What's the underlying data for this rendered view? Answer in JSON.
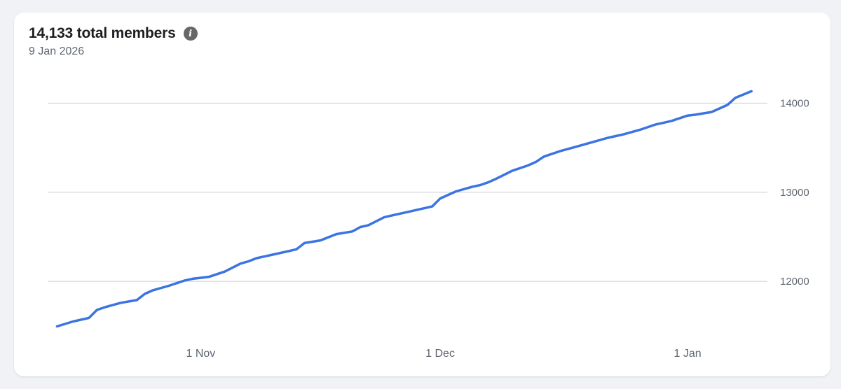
{
  "header": {
    "title": "14,133 total members",
    "subtitle": "9 Jan 2026",
    "info_icon": "info-icon"
  },
  "colors": {
    "line": "#3b74e2",
    "grid": "#c9cdd3",
    "card": "#ffffff",
    "background": "#f0f2f5"
  },
  "chart_data": {
    "type": "line",
    "title": "14,133 total members",
    "subtitle": "9 Jan 2026",
    "xlabel": "",
    "ylabel": "",
    "y_axis_side": "right",
    "grid": "horizontal",
    "legend": "none",
    "xlim": [
      "2025-10-13",
      "2026-01-11"
    ],
    "ylim": [
      11350,
      14450
    ],
    "x_ticks": [
      {
        "date": "2025-11-01",
        "label": "1 Nov"
      },
      {
        "date": "2025-12-01",
        "label": "1 Dec"
      },
      {
        "date": "2026-01-01",
        "label": "1 Jan"
      }
    ],
    "y_ticks": [
      12000,
      13000,
      14000
    ],
    "series": [
      {
        "x": [
          "2025-10-14",
          "2025-10-16",
          "2025-10-18",
          "2025-10-19",
          "2025-10-20",
          "2025-10-22",
          "2025-10-24",
          "2025-10-25",
          "2025-10-26",
          "2025-10-28",
          "2025-10-30",
          "2025-10-31",
          "2025-11-02",
          "2025-11-04",
          "2025-11-06",
          "2025-11-07",
          "2025-11-08",
          "2025-11-10",
          "2025-11-12",
          "2025-11-13",
          "2025-11-14",
          "2025-11-16",
          "2025-11-18",
          "2025-11-20",
          "2025-11-21",
          "2025-11-22",
          "2025-11-24",
          "2025-11-26",
          "2025-11-27",
          "2025-11-28",
          "2025-11-30",
          "2025-12-01",
          "2025-12-03",
          "2025-12-05",
          "2025-12-06",
          "2025-12-07",
          "2025-12-08",
          "2025-12-10",
          "2025-12-12",
          "2025-12-13",
          "2025-12-14",
          "2025-12-16",
          "2025-12-18",
          "2025-12-20",
          "2025-12-22",
          "2025-12-24",
          "2025-12-26",
          "2025-12-28",
          "2025-12-29",
          "2025-12-30",
          "2026-01-01",
          "2026-01-02",
          "2026-01-04",
          "2026-01-05",
          "2026-01-06",
          "2026-01-07",
          "2026-01-09"
        ],
        "y": [
          11495,
          11550,
          11590,
          11680,
          11710,
          11760,
          11790,
          11860,
          11900,
          11950,
          12010,
          12030,
          12050,
          12110,
          12200,
          12225,
          12260,
          12300,
          12340,
          12360,
          12430,
          12460,
          12530,
          12560,
          12610,
          12630,
          12720,
          12760,
          12780,
          12800,
          12840,
          12930,
          13010,
          13060,
          13080,
          13110,
          13150,
          13240,
          13300,
          13340,
          13400,
          13460,
          13510,
          13560,
          13610,
          13650,
          13700,
          13760,
          13780,
          13800,
          13860,
          13870,
          13900,
          13940,
          13980,
          14060,
          14133
        ]
      }
    ]
  }
}
